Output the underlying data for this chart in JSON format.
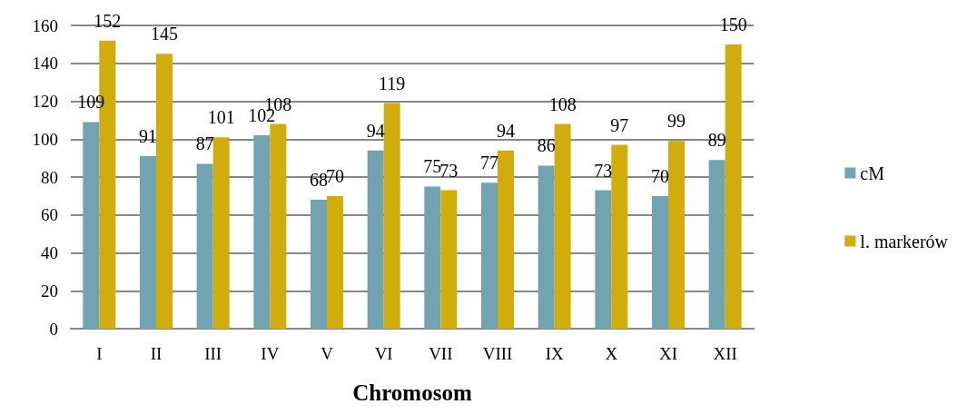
{
  "chart_data": {
    "type": "bar",
    "xlabel": "Chromosom",
    "categories": [
      "I",
      "II",
      "III",
      "IV",
      "V",
      "VI",
      "VII",
      "VIII",
      "IX",
      "X",
      "XI",
      "XII"
    ],
    "series": [
      {
        "name": "cM",
        "color": "#71a3b3",
        "values": [
          109,
          91,
          87,
          102,
          68,
          94,
          75,
          77,
          86,
          73,
          70,
          89
        ]
      },
      {
        "name": "l. markerów",
        "color": "#d1ad0c",
        "values": [
          152,
          145,
          101,
          108,
          70,
          119,
          73,
          94,
          108,
          97,
          99,
          150
        ]
      }
    ],
    "ylim": [
      0,
      160
    ],
    "yticks": [
      0,
      20,
      40,
      60,
      80,
      100,
      120,
      140,
      160
    ],
    "grid": "y",
    "legend": "right",
    "data_labels": true
  }
}
